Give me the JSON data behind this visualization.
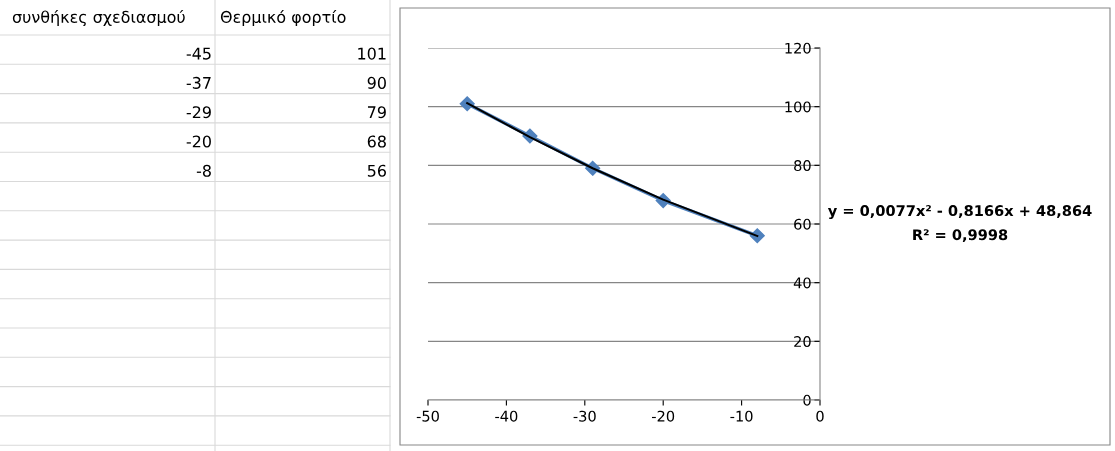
{
  "chart_data": [
    {
      "type": "other",
      "annotations": [
        "συνθήκες σχεδιασμού",
        "Θερμικό φορτίο",
        "-45",
        "101",
        "-37",
        "90",
        "-29",
        "79",
        "-20",
        "68",
        "-8",
        "56"
      ]
    },
    {
      "type": "line",
      "x": [
        -45,
        -37,
        -29,
        -20,
        -8
      ],
      "series": [
        {
          "color": "#4f81bd",
          "values": [
            101,
            90,
            79,
            68,
            56
          ],
          "marker": "diamond",
          "line_style": "solid"
        },
        {
          "type": "line",
          "color": "#000000",
          "x": [
            -45,
            -37,
            -29,
            -20,
            -8
          ],
          "values": [
            101.2,
            89.6,
            79,
            68.3,
            55.9
          ],
          "marker": "none",
          "line_style": "solid"
        }
      ],
      "xlim": [
        -50,
        0
      ],
      "xticks": [
        -50,
        -40,
        -30,
        -20,
        -10,
        0
      ],
      "ylim": [
        0,
        120
      ],
      "yticks": [
        0,
        20,
        40,
        60,
        80,
        100,
        120
      ],
      "grid": "y",
      "annotations": [
        "y = 0,0077x² - 0,8166x + 48,864",
        "R² = 0,9998"
      ]
    }
  ]
}
